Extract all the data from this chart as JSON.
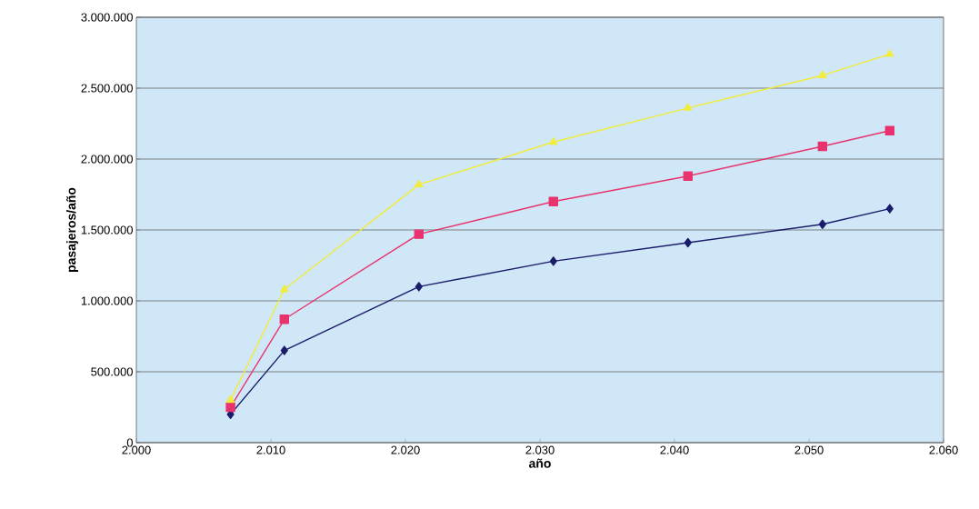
{
  "chart_data": {
    "type": "line",
    "xlabel": "año",
    "ylabel": "pasajeros/año",
    "grid": "y",
    "legend": false,
    "x": [
      2007,
      2011,
      2021,
      2031,
      2041,
      2051,
      2056
    ],
    "xlim": [
      2000,
      2060
    ],
    "xticks": [
      {
        "value": 2000,
        "label": "2.000"
      },
      {
        "value": 2010,
        "label": "2.010"
      },
      {
        "value": 2020,
        "label": "2.020"
      },
      {
        "value": 2030,
        "label": "2.030"
      },
      {
        "value": 2040,
        "label": "2.040"
      },
      {
        "value": 2050,
        "label": "2.050"
      },
      {
        "value": 2060,
        "label": "2.060"
      }
    ],
    "ylim": [
      0,
      3000000
    ],
    "yticks": [
      0,
      {
        "value": 500000,
        "label": "500.000"
      },
      {
        "value": 1000000,
        "label": "1.000.000"
      },
      {
        "value": 1500000,
        "label": "1.500.000"
      },
      {
        "value": 2000000,
        "label": "2.000.000"
      },
      {
        "value": 2500000,
        "label": "2.500.000"
      },
      {
        "value": 3000000,
        "label": "3.000.000"
      }
    ],
    "series": [
      {
        "color": "#1c1c6c",
        "marker": "diamond",
        "values": [
          200000,
          650000,
          1100000,
          1280000,
          1410000,
          1540000,
          1650000
        ]
      },
      {
        "color": "#e8336f",
        "marker": "square",
        "values": [
          250000,
          870000,
          1470000,
          1700000,
          1880000,
          2090000,
          2200000
        ]
      },
      {
        "color": "#f2ec3a",
        "marker": "triangle",
        "values": [
          300000,
          1080000,
          1820000,
          2120000,
          2360000,
          2590000,
          2740000
        ]
      }
    ]
  }
}
